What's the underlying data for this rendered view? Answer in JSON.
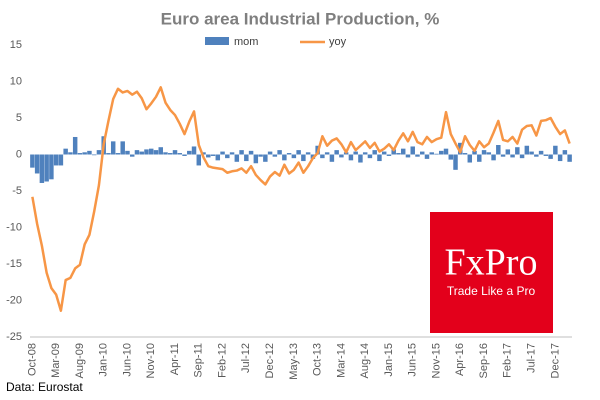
{
  "chart_data": {
    "type": "bar_line",
    "title": "Euro area Industrial  Production, %",
    "source": "Data: Eurostat",
    "logo": {
      "brand": "FxPro",
      "tagline": "Trade Like a Pro"
    },
    "categories": [
      "Oct-08",
      null,
      null,
      null,
      null,
      "Mar-09",
      null,
      null,
      null,
      null,
      "Aug-09",
      null,
      null,
      null,
      null,
      "Jan-10",
      null,
      null,
      null,
      null,
      "Jun-10",
      null,
      null,
      null,
      null,
      "Nov-10",
      null,
      null,
      null,
      null,
      "Apr-11",
      null,
      null,
      null,
      null,
      "Sep-11",
      null,
      null,
      null,
      null,
      "Feb-12",
      null,
      null,
      null,
      null,
      "Jul-12",
      null,
      null,
      null,
      null,
      "Dec-12",
      null,
      null,
      null,
      null,
      "May-13",
      null,
      null,
      null,
      null,
      "Oct-13",
      null,
      null,
      null,
      null,
      "Mar-14",
      null,
      null,
      null,
      null,
      "Aug-14",
      null,
      null,
      null,
      null,
      "Jan-15",
      null,
      null,
      null,
      null,
      "Jun-15",
      null,
      null,
      null,
      null,
      "Nov-15",
      null,
      null,
      null,
      null,
      "Apr-16",
      null,
      null,
      null,
      null,
      "Sep-16",
      null,
      null,
      null,
      null,
      "Feb-17",
      null,
      null,
      null,
      null,
      "Jul-17",
      null,
      null,
      null,
      null,
      "Dec-17",
      null,
      null,
      null
    ],
    "series": [
      {
        "name": "mom",
        "type": "bar",
        "color": "#4f81bd",
        "values": [
          -1.8,
          -2.6,
          -3.9,
          -3.7,
          -3.4,
          -1.5,
          -1.5,
          0.8,
          0.3,
          2.4,
          0.2,
          0.3,
          0.5,
          -0.1,
          0.6,
          2.5,
          0.2,
          1.8,
          0.2,
          1.8,
          0.5,
          -0.3,
          0.6,
          0.4,
          0.7,
          0.8,
          0.6,
          1,
          0.3,
          0.2,
          0.6,
          0.2,
          -0.2,
          0.5,
          1.1,
          -1.5,
          0.3,
          -0.4,
          -0.2,
          -0.8,
          0.4,
          -0.5,
          0.3,
          -1,
          0.6,
          -0.9,
          0.5,
          -1.2,
          -0.3,
          -1,
          0.4,
          -0.3,
          0.6,
          -0.8,
          0.2,
          -0.5,
          0.6,
          -0.9,
          0.3,
          -0.6,
          1.2,
          -0.5,
          0.3,
          -1,
          0.6,
          -0.4,
          0.3,
          -0.8,
          0.4,
          -1.1,
          0.3,
          -0.5,
          0.6,
          -0.9,
          0.4,
          -0.2,
          0.7,
          0.2,
          0.8,
          -0.4,
          1.1,
          -0.3,
          0.4,
          -0.6,
          0.3,
          0.1,
          0.5,
          0.8,
          -0.7,
          -2.1,
          1.6,
          0.2,
          -1.1,
          0.5,
          -1,
          0.6,
          0.3,
          -0.8,
          1.3,
          -0.3,
          0.7,
          -0.4,
          1,
          -0.5,
          1.2,
          0.4,
          -0.3,
          0.5,
          -0.2,
          -0.6,
          1.2,
          -0.9,
          0.6,
          -1
        ]
      },
      {
        "name": "yoy",
        "type": "line",
        "color": "#f79646",
        "values": [
          -5.8,
          -9.5,
          -12.5,
          -16.2,
          -18.3,
          -19.2,
          -21.4,
          -17.2,
          -16.9,
          -15.6,
          -15.1,
          -12.3,
          -11,
          -7.8,
          -4.2,
          1.4,
          4.6,
          7.6,
          9,
          8.5,
          8.7,
          8.2,
          8.6,
          7.7,
          6.2,
          7,
          7.9,
          9.2,
          7.1,
          6.1,
          5.4,
          4.2,
          2.8,
          4.5,
          5.9,
          1.3,
          -0.4,
          -1.6,
          -1.8,
          -1.9,
          -2,
          -2.5,
          -2.3,
          -2.2,
          -1.9,
          -2.5,
          -1.6,
          -2.8,
          -3.5,
          -4.1,
          -3,
          -2.4,
          -2.9,
          -1.4,
          -2.6,
          -2.1,
          -1.1,
          -2.5,
          -1.6,
          -0.5,
          0.2,
          2.5,
          1.2,
          1.9,
          2.2,
          1.4,
          0.3,
          1.7,
          0.6,
          1.2,
          1.8,
          0.9,
          1.6,
          0.4,
          0.8,
          1.4,
          0.6,
          1.9,
          2.9,
          1.8,
          3.1,
          1.7,
          1.4,
          2.4,
          1.7,
          2.1,
          2.3,
          5.8,
          2.8,
          1.5,
          0.3,
          2.5,
          1.3,
          0.5,
          1.8,
          1,
          1.5,
          3,
          4.6,
          2,
          1.8,
          2.4,
          1.5,
          3.4,
          3.9,
          4,
          2.6,
          4.6,
          4.7,
          5,
          3.8,
          2.8,
          3.3,
          1.5
        ]
      }
    ],
    "ylim": [
      -25,
      15
    ],
    "yticks": [
      -25,
      -20,
      -15,
      -10,
      -5,
      0,
      5,
      10,
      15
    ],
    "grid": false
  }
}
